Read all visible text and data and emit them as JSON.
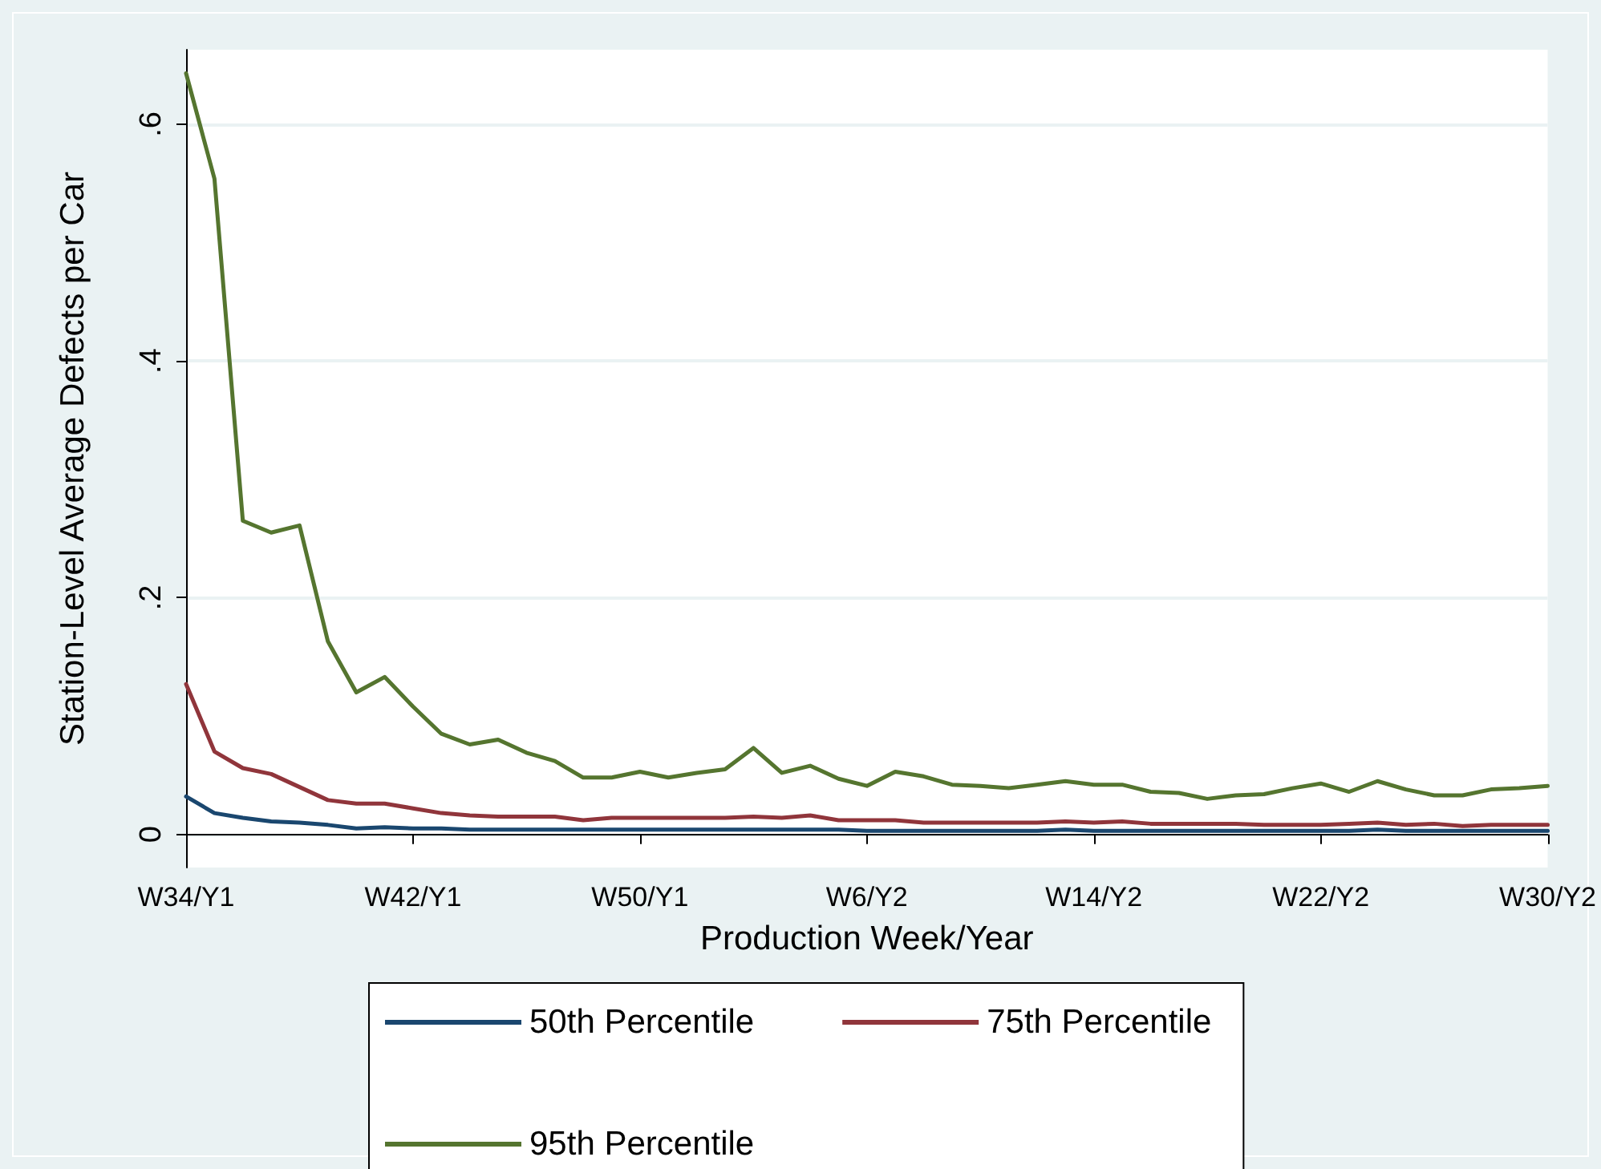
{
  "chart_data": {
    "type": "line",
    "xlabel": "Production Week/Year",
    "ylabel": "Station-Level Average Defects per Car",
    "categories": [
      "W34/Y1",
      null,
      null,
      null,
      null,
      null,
      null,
      null,
      "W42/Y1",
      null,
      null,
      null,
      null,
      null,
      null,
      null,
      "W50/Y1",
      null,
      null,
      null,
      null,
      null,
      null,
      null,
      "W6/Y2",
      null,
      null,
      null,
      null,
      null,
      null,
      null,
      "W14/Y2",
      null,
      null,
      null,
      null,
      null,
      null,
      null,
      "W22/Y2",
      null,
      null,
      null,
      null,
      null,
      null,
      null,
      "W30/Y2"
    ],
    "series": [
      {
        "name": "50th Percentile",
        "color": "#1a476f",
        "values": [
          0.032,
          0.018,
          0.014,
          0.011,
          0.01,
          0.008,
          0.005,
          0.006,
          0.005,
          0.005,
          0.004,
          0.004,
          0.004,
          0.004,
          0.004,
          0.004,
          0.004,
          0.004,
          0.004,
          0.004,
          0.004,
          0.004,
          0.004,
          0.004,
          0.003,
          0.003,
          0.003,
          0.003,
          0.003,
          0.003,
          0.003,
          0.004,
          0.003,
          0.003,
          0.003,
          0.003,
          0.003,
          0.003,
          0.003,
          0.003,
          0.003,
          0.003,
          0.004,
          0.003,
          0.003,
          0.003,
          0.003,
          0.003,
          0.003
        ]
      },
      {
        "name": "75th Percentile",
        "color": "#90353b",
        "values": [
          0.127,
          0.07,
          0.056,
          0.051,
          0.04,
          0.029,
          0.026,
          0.026,
          0.022,
          0.018,
          0.016,
          0.015,
          0.015,
          0.015,
          0.012,
          0.014,
          0.014,
          0.014,
          0.014,
          0.014,
          0.015,
          0.014,
          0.016,
          0.012,
          0.012,
          0.012,
          0.01,
          0.01,
          0.01,
          0.01,
          0.01,
          0.011,
          0.01,
          0.011,
          0.009,
          0.009,
          0.009,
          0.009,
          0.008,
          0.008,
          0.008,
          0.009,
          0.01,
          0.008,
          0.009,
          0.007,
          0.008,
          0.008,
          0.008
        ]
      },
      {
        "name": "95th Percentile",
        "color": "#55752f",
        "values": [
          0.643,
          0.554,
          0.265,
          0.255,
          0.261,
          0.163,
          0.12,
          0.133,
          0.108,
          0.085,
          0.076,
          0.08,
          0.069,
          0.062,
          0.048,
          0.048,
          0.053,
          0.048,
          0.052,
          0.055,
          0.073,
          0.052,
          0.058,
          0.047,
          0.041,
          0.053,
          0.049,
          0.042,
          0.041,
          0.039,
          0.042,
          0.045,
          0.042,
          0.042,
          0.036,
          0.035,
          0.03,
          0.033,
          0.034,
          0.039,
          0.043,
          0.036,
          0.045,
          0.038,
          0.033,
          0.033,
          0.038,
          0.039,
          0.041
        ]
      }
    ],
    "ylim": [
      -0.028,
      0.663
    ],
    "yticks": [
      {
        "value": 0,
        "label": "0"
      },
      {
        "value": 0.2,
        "label": ".2"
      },
      {
        "value": 0.4,
        "label": ".4"
      },
      {
        "value": 0.6,
        "label": ".6"
      }
    ],
    "grid": "y",
    "legend": "bottom",
    "marker": "none",
    "line_style": "solid"
  }
}
